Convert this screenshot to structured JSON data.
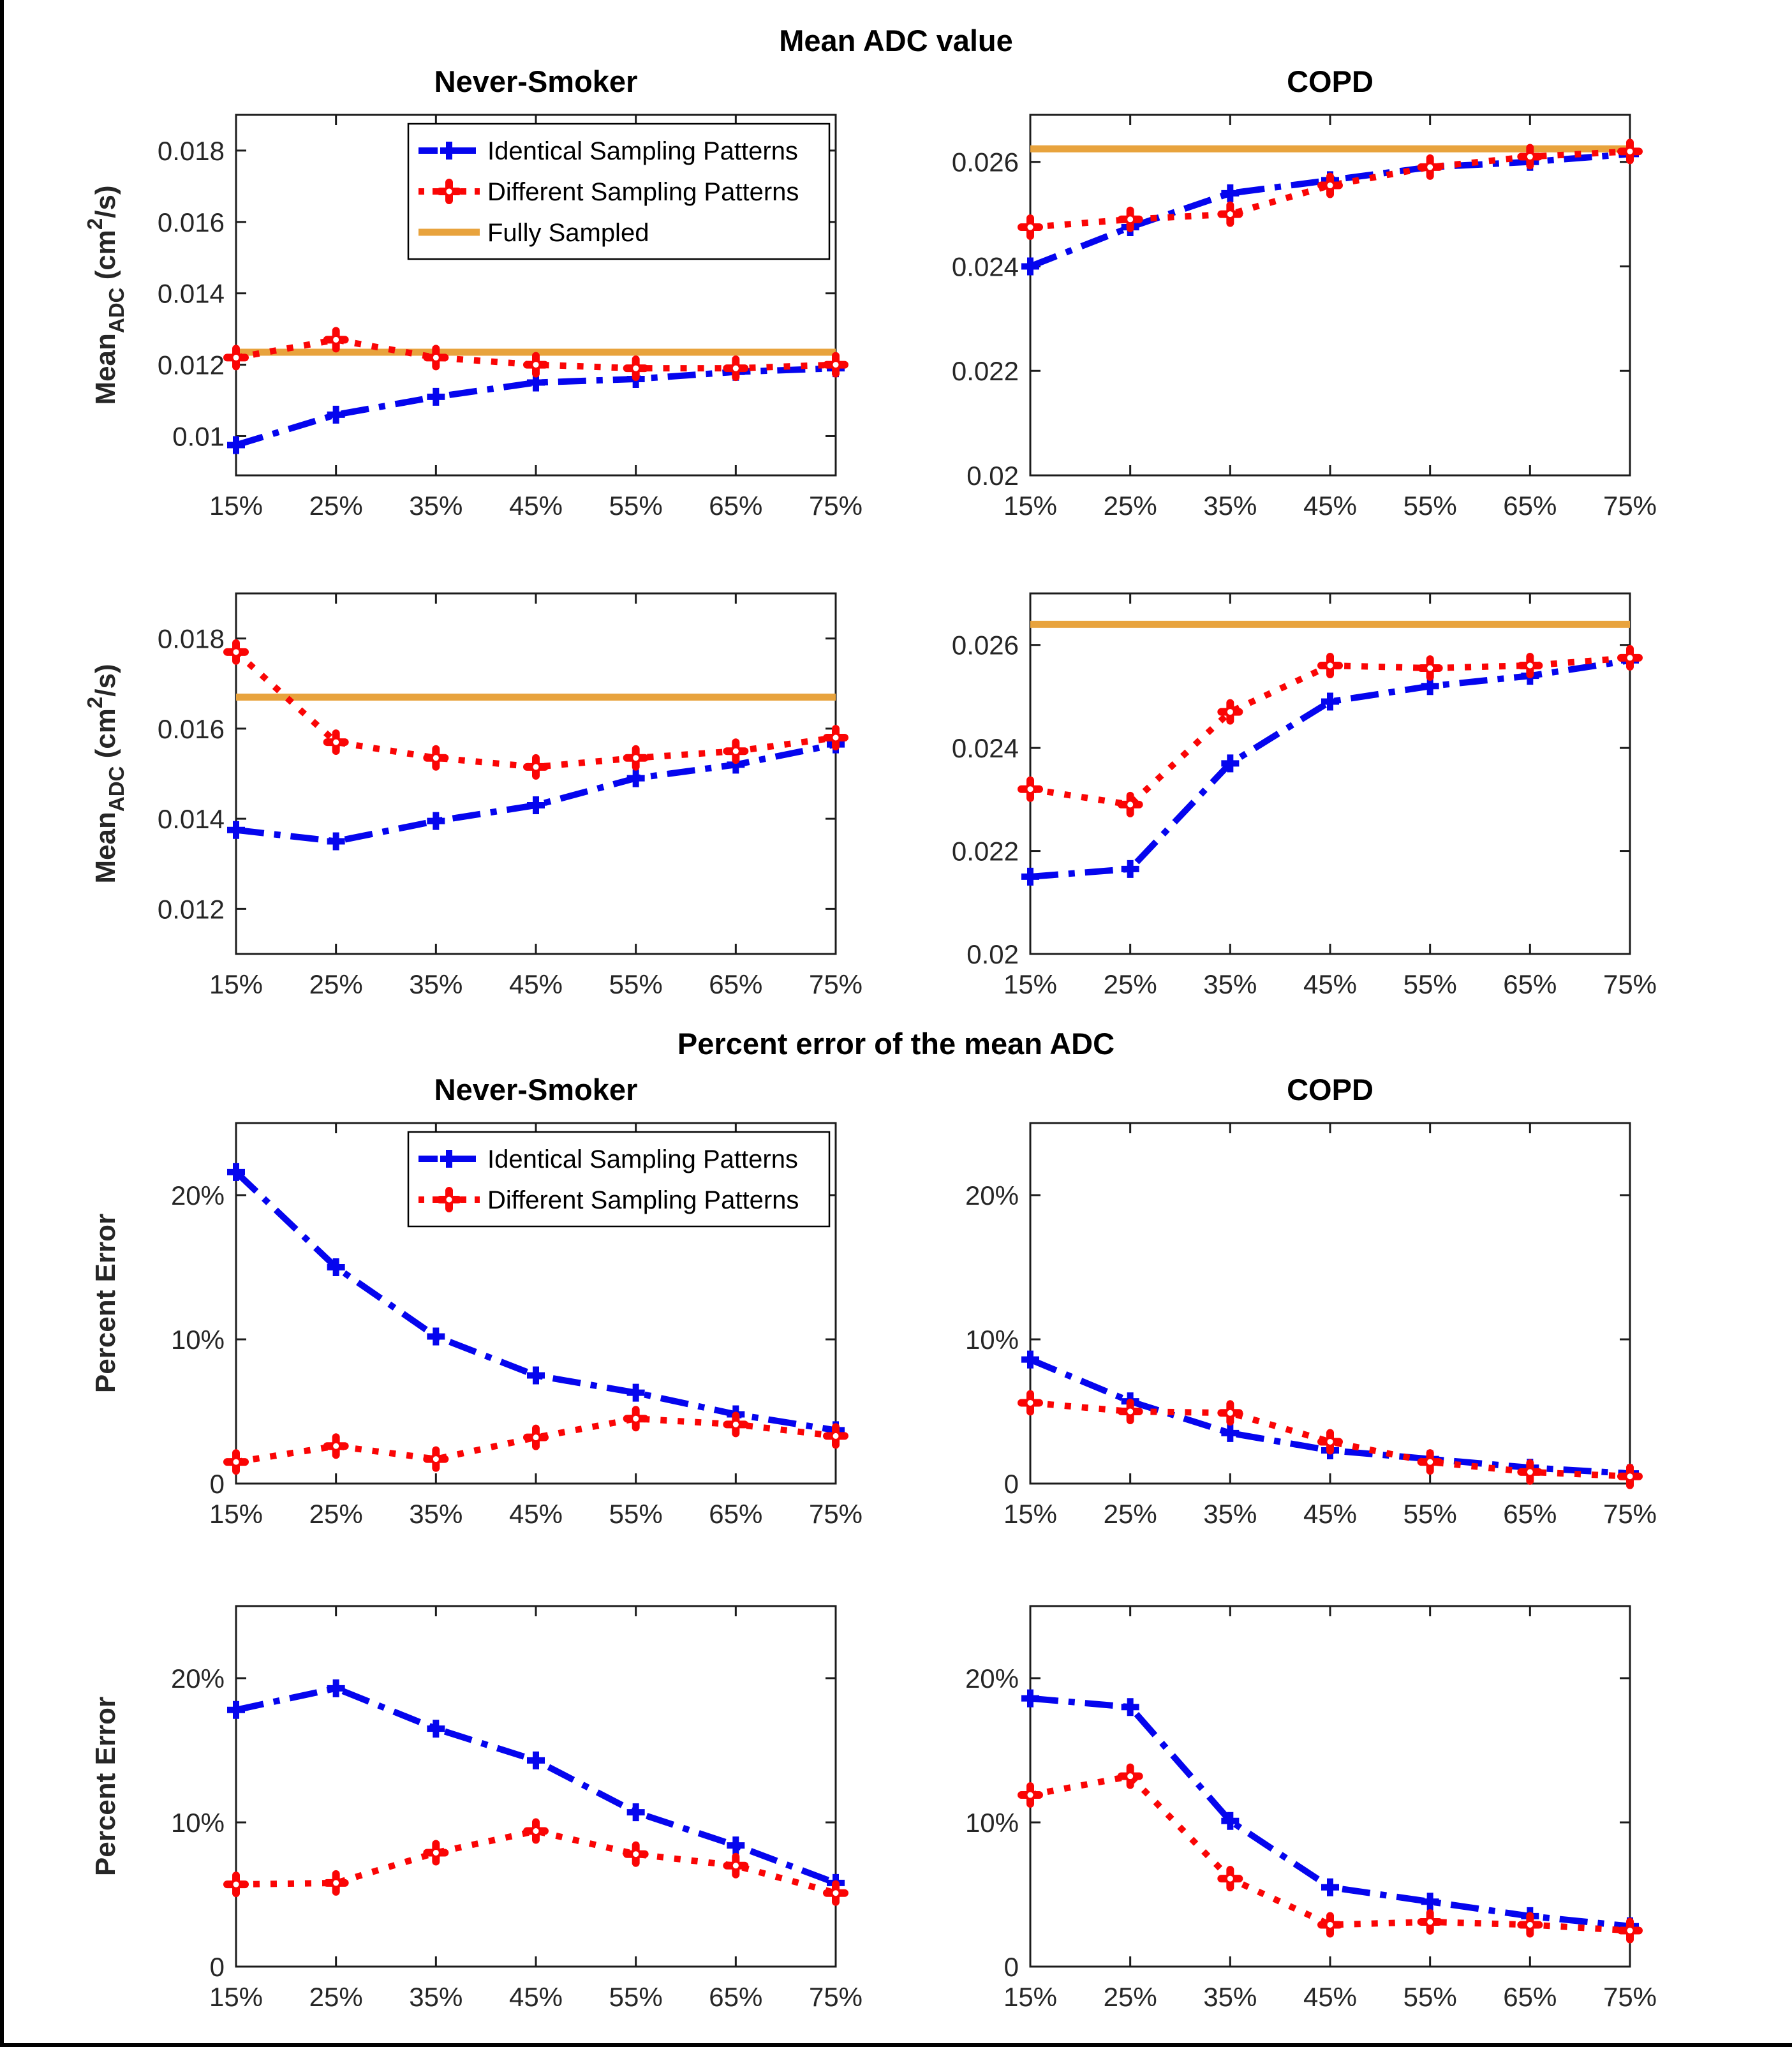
{
  "page": {
    "section1_title": "Mean ADC value",
    "section2_title": "Percent error of the mean ADC",
    "left_column_title": "Never-Smoker",
    "right_column_title": "COPD"
  },
  "colors": {
    "identical": "#0505EE",
    "different": "#FA0505",
    "fully_sampled": "#E8A33D",
    "axis": "#1c1c1c",
    "tick_text": "#262626",
    "legend_border": "#000000",
    "background": "#ffffff"
  },
  "series_defs": {
    "identical": {
      "label": "Identical Sampling Patterns",
      "style": "dashdot",
      "marker": "plus"
    },
    "different": {
      "label": "Different Sampling Patterns",
      "style": "dotted",
      "marker": "flower"
    },
    "fully": {
      "label": "Fully Sampled",
      "style": "solid",
      "marker": null
    }
  },
  "x_tick_labels": [
    "15%",
    "25%",
    "35%",
    "45%",
    "55%",
    "65%",
    "75%"
  ],
  "ylabels": {
    "mean_adc": [
      [
        "Mean",
        "n"
      ],
      [
        "ADC",
        "sub"
      ],
      [
        " (cm",
        "n"
      ],
      [
        "2",
        "sup"
      ],
      [
        "/s)",
        "n"
      ]
    ],
    "percent_error": [
      [
        "Percent Error",
        "n"
      ]
    ]
  },
  "chart_data": [
    {
      "id": "mean-adc-never-smoker-a",
      "type": "line",
      "title": "Never-Smoker",
      "ylabel_key": "mean_adc",
      "ylim": [
        0.0089,
        0.019
      ],
      "yticks": [
        [
          0.01,
          "0.01"
        ],
        [
          0.012,
          "0.012"
        ],
        [
          0.014,
          "0.014"
        ],
        [
          0.016,
          "0.016"
        ],
        [
          0.018,
          "0.018"
        ]
      ],
      "fully_sampled": 0.01235,
      "legend": [
        "identical",
        "different",
        "fully"
      ],
      "series": [
        {
          "key": "identical",
          "values": [
            0.00975,
            0.0106,
            0.0111,
            0.0115,
            0.0116,
            0.0118,
            0.0119
          ]
        },
        {
          "key": "different",
          "values": [
            0.0122,
            0.0127,
            0.0122,
            0.012,
            0.0119,
            0.0119,
            0.012
          ]
        }
      ]
    },
    {
      "id": "mean-adc-copd-a",
      "type": "line",
      "title": "COPD",
      "ylabel_key": null,
      "ylim": [
        0.02,
        0.0269
      ],
      "yticks": [
        [
          0.02,
          "0.02"
        ],
        [
          0.022,
          "0.022"
        ],
        [
          0.024,
          "0.024"
        ],
        [
          0.026,
          "0.026"
        ]
      ],
      "fully_sampled": 0.02625,
      "legend": null,
      "series": [
        {
          "key": "identical",
          "values": [
            0.024,
            0.02475,
            0.0254,
            0.02565,
            0.0259,
            0.026,
            0.02615
          ]
        },
        {
          "key": "different",
          "values": [
            0.02475,
            0.0249,
            0.025,
            0.02555,
            0.0259,
            0.0261,
            0.0262
          ]
        }
      ]
    },
    {
      "id": "mean-adc-never-smoker-b",
      "type": "line",
      "title": null,
      "ylabel_key": "mean_adc",
      "ylim": [
        0.011,
        0.019
      ],
      "yticks": [
        [
          0.012,
          "0.012"
        ],
        [
          0.014,
          "0.014"
        ],
        [
          0.016,
          "0.016"
        ],
        [
          0.018,
          "0.018"
        ]
      ],
      "fully_sampled": 0.0167,
      "legend": null,
      "series": [
        {
          "key": "identical",
          "values": [
            0.01375,
            0.0135,
            0.01395,
            0.0143,
            0.0149,
            0.0152,
            0.01565
          ]
        },
        {
          "key": "different",
          "values": [
            0.0177,
            0.0157,
            0.01535,
            0.01515,
            0.01535,
            0.0155,
            0.0158
          ]
        }
      ]
    },
    {
      "id": "mean-adc-copd-b",
      "type": "line",
      "title": null,
      "ylabel_key": null,
      "ylim": [
        0.02,
        0.027
      ],
      "yticks": [
        [
          0.02,
          "0.02"
        ],
        [
          0.022,
          "0.022"
        ],
        [
          0.024,
          "0.024"
        ],
        [
          0.026,
          "0.026"
        ]
      ],
      "fully_sampled": 0.0264,
      "legend": null,
      "series": [
        {
          "key": "identical",
          "values": [
            0.0215,
            0.02165,
            0.0237,
            0.0249,
            0.0252,
            0.0254,
            0.0257
          ]
        },
        {
          "key": "different",
          "values": [
            0.0232,
            0.0229,
            0.0247,
            0.0256,
            0.02555,
            0.0256,
            0.02575
          ]
        }
      ]
    },
    {
      "id": "pct-error-never-smoker-a",
      "type": "line",
      "title": "Never-Smoker",
      "ylabel_key": "percent_error",
      "ylim": [
        0,
        25
      ],
      "yticks": [
        [
          0,
          "0"
        ],
        [
          10,
          "10%"
        ],
        [
          20,
          "20%"
        ]
      ],
      "fully_sampled": null,
      "legend": [
        "identical",
        "different"
      ],
      "series": [
        {
          "key": "identical",
          "values": [
            21.6,
            15.0,
            10.2,
            7.5,
            6.3,
            4.8,
            3.7
          ]
        },
        {
          "key": "different",
          "values": [
            1.5,
            2.6,
            1.7,
            3.2,
            4.5,
            4.1,
            3.3
          ]
        }
      ]
    },
    {
      "id": "pct-error-copd-a",
      "type": "line",
      "title": "COPD",
      "ylabel_key": null,
      "ylim": [
        0,
        25
      ],
      "yticks": [
        [
          0,
          "0"
        ],
        [
          10,
          "10%"
        ],
        [
          20,
          "20%"
        ]
      ],
      "fully_sampled": null,
      "legend": null,
      "series": [
        {
          "key": "identical",
          "values": [
            8.6,
            5.7,
            3.5,
            2.3,
            1.7,
            1.1,
            0.7
          ]
        },
        {
          "key": "different",
          "values": [
            5.6,
            5.0,
            4.9,
            2.9,
            1.5,
            0.8,
            0.5
          ]
        }
      ]
    },
    {
      "id": "pct-error-never-smoker-b",
      "type": "line",
      "title": null,
      "ylabel_key": "percent_error",
      "ylim": [
        0,
        25
      ],
      "yticks": [
        [
          0,
          "0"
        ],
        [
          10,
          "10%"
        ],
        [
          20,
          "20%"
        ]
      ],
      "fully_sampled": null,
      "legend": null,
      "series": [
        {
          "key": "identical",
          "values": [
            17.8,
            19.3,
            16.5,
            14.3,
            10.7,
            8.4,
            5.8
          ]
        },
        {
          "key": "different",
          "values": [
            5.7,
            5.8,
            7.9,
            9.4,
            7.8,
            7.0,
            5.1
          ]
        }
      ]
    },
    {
      "id": "pct-error-copd-b",
      "type": "line",
      "title": null,
      "ylabel_key": null,
      "ylim": [
        0,
        25
      ],
      "yticks": [
        [
          0,
          "0"
        ],
        [
          10,
          "10%"
        ],
        [
          20,
          "20%"
        ]
      ],
      "fully_sampled": null,
      "legend": null,
      "series": [
        {
          "key": "identical",
          "values": [
            18.6,
            18.0,
            10.1,
            5.5,
            4.5,
            3.5,
            2.8
          ]
        },
        {
          "key": "different",
          "values": [
            11.9,
            13.2,
            6.1,
            2.9,
            3.1,
            2.9,
            2.5
          ]
        }
      ]
    }
  ]
}
